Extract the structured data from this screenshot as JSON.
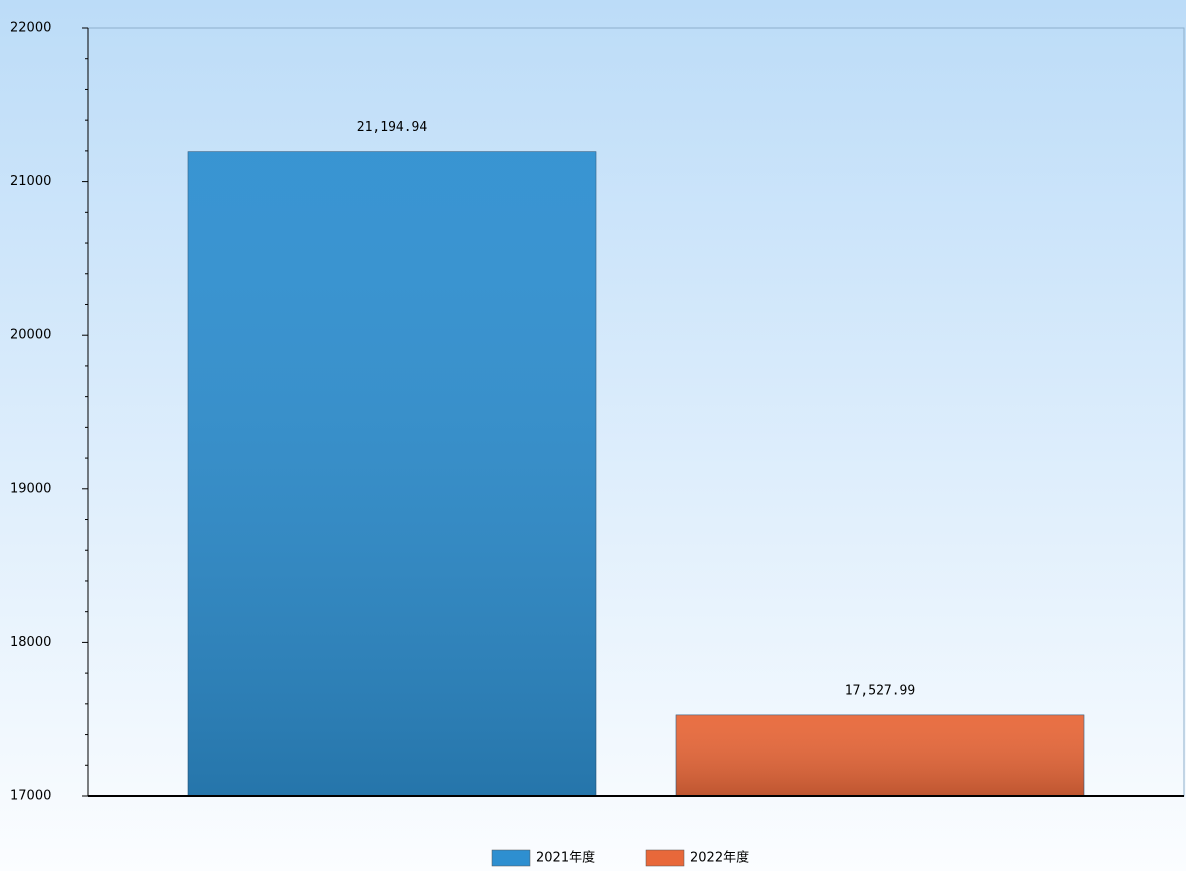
{
  "chart_data": {
    "type": "bar",
    "series": [
      {
        "name": "2021年度",
        "color": "#2e8fd0",
        "values": [
          21194.94
        ],
        "value_labels": [
          "21,194.94"
        ]
      },
      {
        "name": "2022年度",
        "color": "#e8683a",
        "values": [
          17527.99
        ],
        "value_labels": [
          "17,527.99"
        ]
      }
    ],
    "ylim": [
      17000,
      22000
    ],
    "yticks": [
      17000,
      18000,
      19000,
      20000,
      21000,
      22000
    ],
    "legend": "bottom"
  }
}
